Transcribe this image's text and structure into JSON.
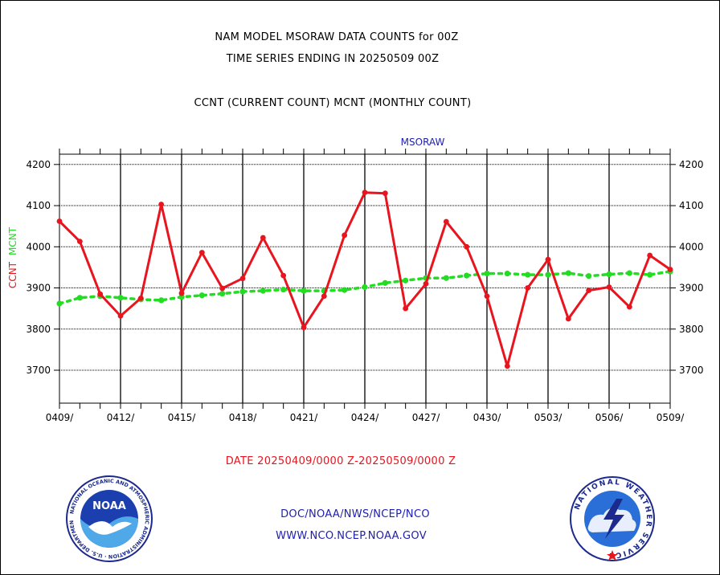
{
  "header": {
    "title_line1": "NAM MODEL MSORAW DATA COUNTS for 00Z",
    "title_line2": "TIME SERIES ENDING IN 20250509 00Z",
    "title_line3": "CCNT (CURRENT COUNT) MCNT (MONTHLY COUNT)"
  },
  "footer": {
    "date_range": "DATE 20250409/0000 Z-20250509/0000 Z",
    "org_line": "DOC/NOAA/NWS/NCEP/NCO",
    "url_line": "WWW.NCO.NCEP.NOAA.GOV"
  },
  "logos": {
    "left": {
      "text": "NOAA",
      "ring_text": "NATIONAL OCEANIC AND ATMOSPHERIC ADMINISTRATION · U.S. DEPARTMENT OF COMMERCE"
    },
    "right": {
      "ring_text": "NATIONAL WEATHER SERVICE"
    }
  },
  "colors": {
    "ccnt": "#e8141e",
    "mcnt": "#22dd22",
    "title_blue": "#2020b0"
  },
  "chart_data": {
    "type": "line",
    "title": "MSORAW",
    "ylabel_parts": [
      {
        "text": "CCNT",
        "color": "#e8141e"
      },
      {
        "text": "MCNT",
        "color": "#22dd22"
      }
    ],
    "x_start_date": "2025-04-09",
    "x_tick_labels": [
      "0409/",
      "0412/",
      "0415/",
      "0418/",
      "0421/",
      "0424/",
      "0427/",
      "0430/",
      "0503/",
      "0506/",
      "0509/"
    ],
    "y_ticks": [
      3700,
      3800,
      3900,
      4000,
      4100,
      4200
    ],
    "ylim": [
      3620,
      4225
    ],
    "grid": true,
    "series": [
      {
        "name": "CCNT",
        "color": "#e8141e",
        "values": [
          4062,
          4013,
          3885,
          3832,
          3875,
          4103,
          3887,
          3986,
          3899,
          3923,
          4022,
          3930,
          3804,
          3880,
          4028,
          4132,
          4130,
          3850,
          3910,
          4061,
          4000,
          3880,
          3710,
          3900,
          3969,
          3825,
          3894,
          3902,
          3854,
          3979,
          3945
        ]
      },
      {
        "name": "MCNT",
        "color": "#22dd22",
        "values": [
          3862,
          3876,
          3880,
          3876,
          3872,
          3870,
          3878,
          3882,
          3886,
          3891,
          3893,
          3896,
          3893,
          3893,
          3895,
          3902,
          3912,
          3918,
          3924,
          3924,
          3930,
          3935,
          3935,
          3932,
          3932,
          3936,
          3929,
          3933,
          3936,
          3932,
          3940
        ]
      }
    ]
  }
}
